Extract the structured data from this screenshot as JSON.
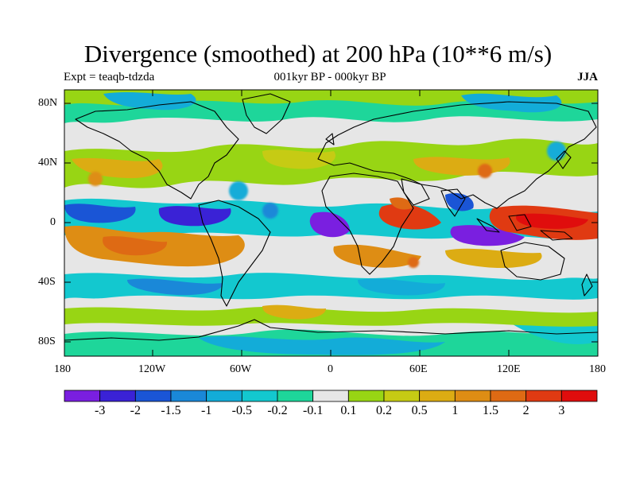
{
  "title": "Divergence (smoothed) at 200 hPa (10**6 m/s)",
  "subtitle_left": "Expt = teaqb-tdzda",
  "subtitle_center": "001kyr BP - 000kyr BP",
  "subtitle_right": "JJA",
  "lat_labels": [
    "80N",
    "40N",
    "0",
    "40S",
    "80S"
  ],
  "lon_labels": [
    "180",
    "120W",
    "60W",
    "0",
    "60E",
    "120E",
    "180"
  ],
  "colorbar": {
    "labels": [
      "-3",
      "-2",
      "-1.5",
      "-1",
      "-0.5",
      "-0.2",
      "-0.1",
      "0.1",
      "0.2",
      "0.5",
      "1",
      "1.5",
      "2",
      "3"
    ],
    "colors": [
      "#7a1fe0",
      "#3a22d6",
      "#1a55d6",
      "#1a88d8",
      "#13acd8",
      "#13c8cf",
      "#1ed69a",
      "#e6e6e6",
      "#98d514",
      "#c6cb14",
      "#dcac13",
      "#de8d14",
      "#de6a14",
      "#e03a12",
      "#e00d0d"
    ]
  }
}
